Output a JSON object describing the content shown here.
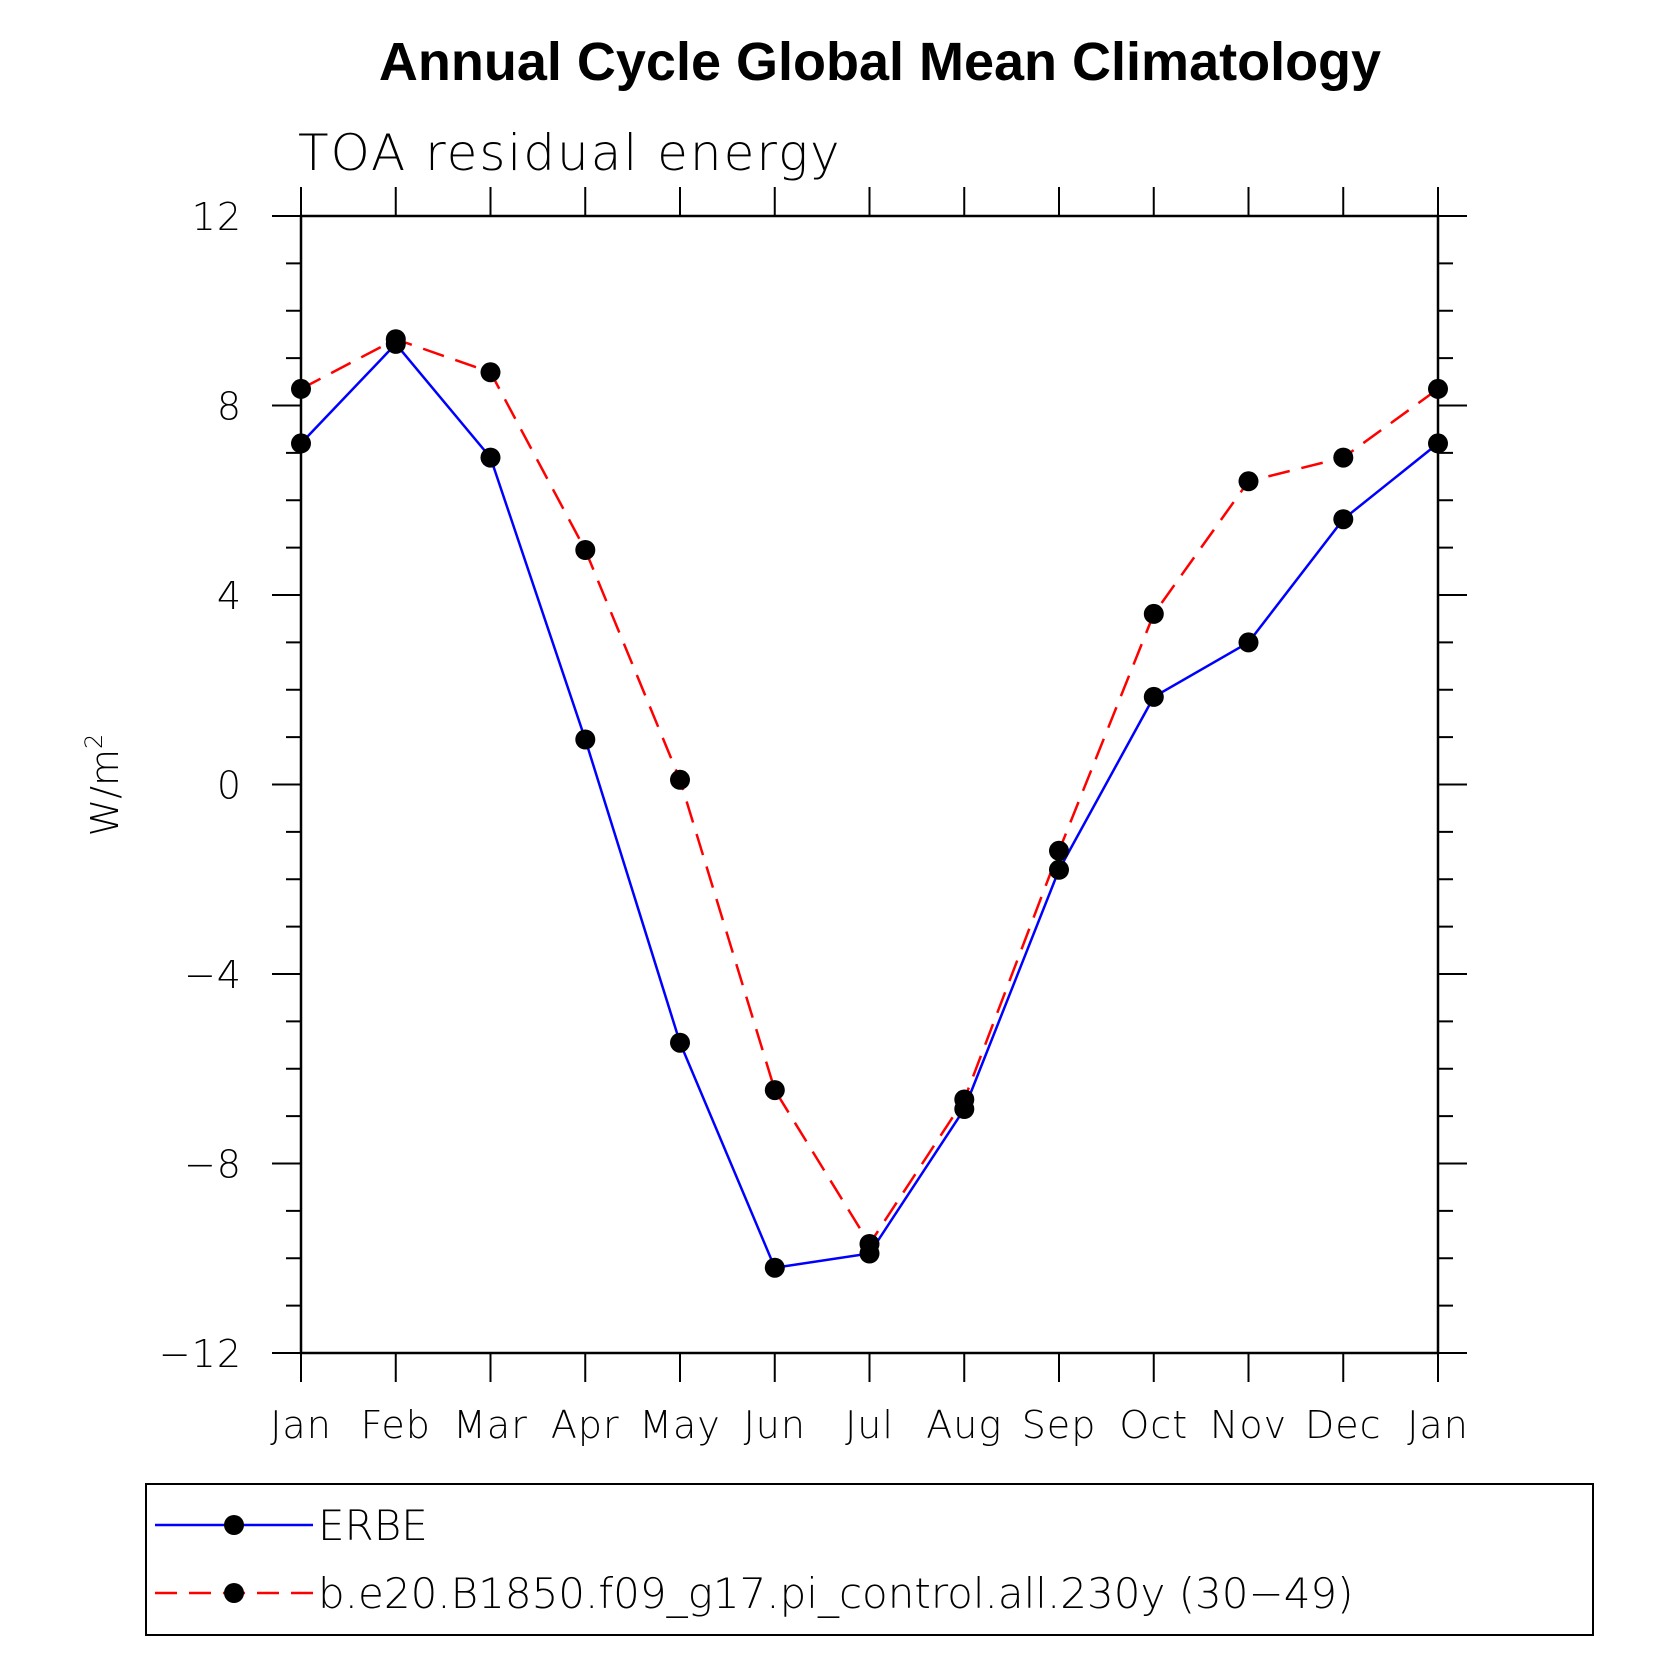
{
  "chart_data": {
    "type": "line",
    "title": "Annual Cycle Global Mean Climatology",
    "subtitle": "TOA residual energy",
    "xlabel": "",
    "ylabel": "W/m",
    "ylabel_superscript": "2",
    "categories": [
      "Jan",
      "Feb",
      "Mar",
      "Apr",
      "May",
      "Jun",
      "Jul",
      "Aug",
      "Sep",
      "Oct",
      "Nov",
      "Dec",
      "Jan"
    ],
    "ylim": [
      -12,
      12
    ],
    "y_ticks": [
      -12,
      -8,
      -4,
      0,
      4,
      8,
      12
    ],
    "y_tick_labels": [
      "−12",
      "−8",
      "−4",
      "0",
      "4",
      "8",
      "12"
    ],
    "grid": false,
    "legend_position": "bottom",
    "series": [
      {
        "name": "ERBE",
        "color": "#0000ff",
        "dash": "solid",
        "marker": "filled-circle",
        "values": [
          7.2,
          9.3,
          6.9,
          0.95,
          -5.45,
          -10.2,
          -9.9,
          -6.85,
          -1.8,
          1.85,
          3.0,
          5.6,
          7.2
        ]
      },
      {
        "name": "b.e20.B1850.f09_g17.pi_control.all.230y (30−49)",
        "color": "#ff0000",
        "dash": "dashed",
        "marker": "filled-circle",
        "values": [
          8.35,
          9.4,
          8.7,
          4.95,
          0.1,
          -6.45,
          -9.7,
          -6.65,
          -1.4,
          3.6,
          6.4,
          6.9,
          8.35
        ]
      }
    ]
  }
}
